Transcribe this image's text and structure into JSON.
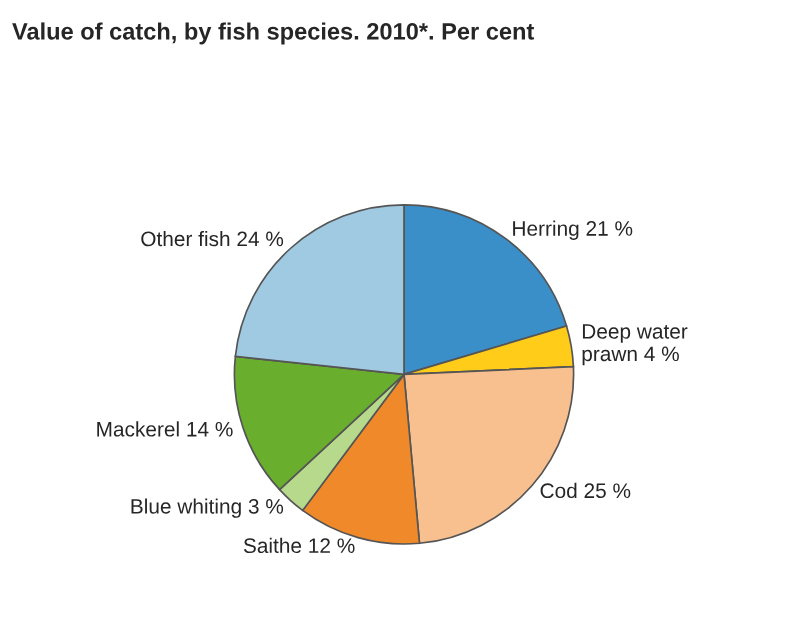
{
  "chart_data": {
    "type": "pie",
    "title": "Value of catch, by fish species. 2010*. Per cent",
    "categories": [
      "Herring",
      "Deep water\nprawn",
      "Cod",
      "Saithe",
      "Blue whiting",
      "Mackerel",
      "Other fish"
    ],
    "values": [
      21,
      4,
      25,
      12,
      3,
      14,
      24
    ],
    "value_labels": [
      "21 %",
      "4 %",
      "25 %",
      "12 %",
      "3 %",
      "14 %",
      "24 %"
    ],
    "colors": [
      "#3a8fc8",
      "#ffcc1a",
      "#f9c08f",
      "#f0892a",
      "#b6d98b",
      "#6aae2e",
      "#9fcae2"
    ]
  }
}
